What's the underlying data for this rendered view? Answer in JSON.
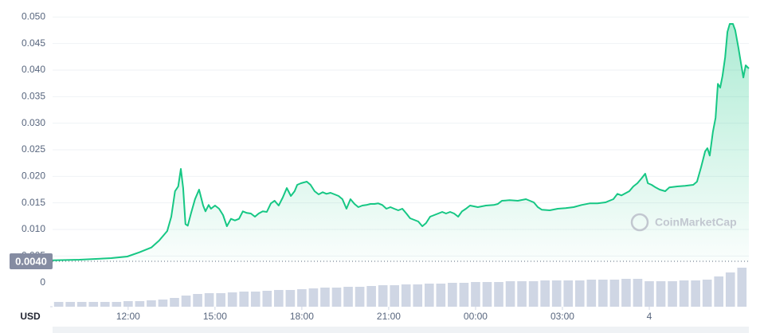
{
  "chart_data": {
    "type": "line",
    "currency": "USD",
    "watermark": "CoinMarketCap",
    "reference_line": {
      "value": 0.004,
      "label": "0.0040"
    },
    "xlim": [
      9.39,
      33.44
    ],
    "xticks": [
      {
        "value": 12,
        "label": "12:00"
      },
      {
        "value": 15,
        "label": "15:00"
      },
      {
        "value": 18,
        "label": "18:00"
      },
      {
        "value": 21,
        "label": "21:00"
      },
      {
        "value": 24,
        "label": "00:00"
      },
      {
        "value": 27,
        "label": "03:00"
      },
      {
        "value": 30,
        "label": "4"
      }
    ],
    "ylim": [
      0.004,
      0.052
    ],
    "yticks": [
      {
        "value": 0.005,
        "label": "0.005"
      },
      {
        "value": 0.01,
        "label": "0.010"
      },
      {
        "value": 0.015,
        "label": "0.015"
      },
      {
        "value": 0.02,
        "label": "0.020"
      },
      {
        "value": 0.025,
        "label": "0.025"
      },
      {
        "value": 0.03,
        "label": "0.030"
      },
      {
        "value": 0.035,
        "label": "0.035"
      },
      {
        "value": 0.04,
        "label": "0.040"
      },
      {
        "value": 0.045,
        "label": "0.045"
      },
      {
        "value": 0.05,
        "label": "0.050"
      }
    ],
    "grid": true,
    "y2lim": [
      0,
      55
    ],
    "y2ticks": [
      0
    ],
    "price": {
      "color": "#16c784",
      "x": [
        9.39,
        10.32,
        11.42,
        11.97,
        12.39,
        12.8,
        13.07,
        13.35,
        13.49,
        13.62,
        13.73,
        13.82,
        13.9,
        13.98,
        14.06,
        14.17,
        14.31,
        14.45,
        14.59,
        14.67,
        14.78,
        14.86,
        15.0,
        15.14,
        15.28,
        15.41,
        15.55,
        15.69,
        15.83,
        15.96,
        16.1,
        16.24,
        16.38,
        16.51,
        16.65,
        16.79,
        16.93,
        17.06,
        17.2,
        17.34,
        17.48,
        17.62,
        17.75,
        17.84,
        17.97,
        18.17,
        18.3,
        18.44,
        18.58,
        18.72,
        18.85,
        18.99,
        19.13,
        19.27,
        19.4,
        19.54,
        19.68,
        19.82,
        19.95,
        20.09,
        20.23,
        20.37,
        20.51,
        20.64,
        20.78,
        20.92,
        21.06,
        21.19,
        21.33,
        21.47,
        21.61,
        21.74,
        21.88,
        22.02,
        22.16,
        22.29,
        22.43,
        22.57,
        22.71,
        22.85,
        22.98,
        23.12,
        23.26,
        23.4,
        23.53,
        23.67,
        23.81,
        24.08,
        24.36,
        24.63,
        24.77,
        24.91,
        25.18,
        25.46,
        25.74,
        26.01,
        26.15,
        26.29,
        26.56,
        26.84,
        27.11,
        27.39,
        27.66,
        27.94,
        28.21,
        28.49,
        28.76,
        28.9,
        29.04,
        29.31,
        29.45,
        29.59,
        29.73,
        29.86,
        29.95,
        30.08,
        30.22,
        30.36,
        30.55,
        30.69,
        30.97,
        31.24,
        31.52,
        31.65,
        31.79,
        31.93,
        32.01,
        32.09,
        32.2,
        32.29,
        32.37,
        32.45,
        32.53,
        32.62,
        32.7,
        32.78,
        32.89,
        32.97,
        33.08,
        33.17,
        33.25,
        33.33,
        33.44
      ],
      "values": [
        0.0042,
        0.0043,
        0.0046,
        0.0049,
        0.0057,
        0.0066,
        0.0079,
        0.0097,
        0.0124,
        0.0172,
        0.0181,
        0.0214,
        0.0178,
        0.011,
        0.0107,
        0.013,
        0.0157,
        0.0175,
        0.0145,
        0.0134,
        0.0146,
        0.0139,
        0.0145,
        0.0139,
        0.0127,
        0.0106,
        0.012,
        0.0117,
        0.012,
        0.0134,
        0.0131,
        0.013,
        0.0124,
        0.013,
        0.0134,
        0.0133,
        0.0149,
        0.0154,
        0.0145,
        0.016,
        0.0178,
        0.0163,
        0.0172,
        0.0184,
        0.0187,
        0.019,
        0.0184,
        0.0172,
        0.0166,
        0.017,
        0.0167,
        0.0169,
        0.0166,
        0.0163,
        0.0157,
        0.0139,
        0.0157,
        0.0148,
        0.0142,
        0.0145,
        0.0146,
        0.0148,
        0.0148,
        0.0149,
        0.0146,
        0.0139,
        0.0142,
        0.0139,
        0.0136,
        0.0139,
        0.013,
        0.0121,
        0.0118,
        0.0115,
        0.0106,
        0.0112,
        0.0124,
        0.0127,
        0.013,
        0.0133,
        0.013,
        0.0133,
        0.013,
        0.0124,
        0.0134,
        0.0139,
        0.0145,
        0.0142,
        0.0145,
        0.0146,
        0.0148,
        0.0154,
        0.0155,
        0.0154,
        0.0157,
        0.0151,
        0.0142,
        0.0137,
        0.0136,
        0.0139,
        0.014,
        0.0142,
        0.0146,
        0.0149,
        0.0149,
        0.0151,
        0.0157,
        0.0167,
        0.0164,
        0.0172,
        0.0181,
        0.0187,
        0.0196,
        0.0205,
        0.0187,
        0.0184,
        0.0179,
        0.0175,
        0.0172,
        0.0179,
        0.0181,
        0.0182,
        0.0184,
        0.019,
        0.0217,
        0.0247,
        0.0253,
        0.0239,
        0.0284,
        0.031,
        0.0374,
        0.0367,
        0.0389,
        0.0424,
        0.0472,
        0.0487,
        0.0487,
        0.0475,
        0.0442,
        0.0412,
        0.0386,
        0.0409,
        0.0403
      ]
    },
    "volume": {
      "color": "#cfd6e4",
      "axis": "y2",
      "x": [
        9.6,
        10.0,
        10.4,
        10.8,
        11.2,
        11.6,
        12.0,
        12.4,
        12.8,
        13.2,
        13.6,
        14.0,
        14.4,
        14.8,
        15.2,
        15.6,
        16.0,
        16.4,
        16.8,
        17.2,
        17.6,
        18.0,
        18.4,
        18.8,
        19.2,
        19.6,
        20.0,
        20.4,
        20.8,
        21.2,
        21.6,
        22.0,
        22.4,
        22.8,
        23.2,
        23.6,
        24.0,
        24.4,
        24.8,
        25.2,
        25.6,
        26.0,
        26.4,
        26.8,
        27.2,
        27.6,
        28.0,
        28.4,
        28.8,
        29.2,
        29.6,
        30.0,
        30.4,
        30.8,
        31.2,
        31.6,
        32.0,
        32.4,
        32.8,
        33.2
      ],
      "values": [
        6,
        6,
        6,
        6,
        6,
        6,
        7,
        7,
        8,
        9,
        11,
        14,
        16,
        17,
        17,
        18,
        19,
        19,
        20,
        21,
        21,
        22,
        23,
        24,
        24,
        25,
        25,
        26,
        27,
        27,
        28,
        28,
        29,
        29,
        30,
        30,
        31,
        31,
        31,
        32,
        32,
        32,
        33,
        33,
        33,
        33,
        34,
        34,
        34,
        35,
        35,
        32,
        32,
        32,
        33,
        33,
        34,
        38,
        43,
        49
      ]
    }
  }
}
